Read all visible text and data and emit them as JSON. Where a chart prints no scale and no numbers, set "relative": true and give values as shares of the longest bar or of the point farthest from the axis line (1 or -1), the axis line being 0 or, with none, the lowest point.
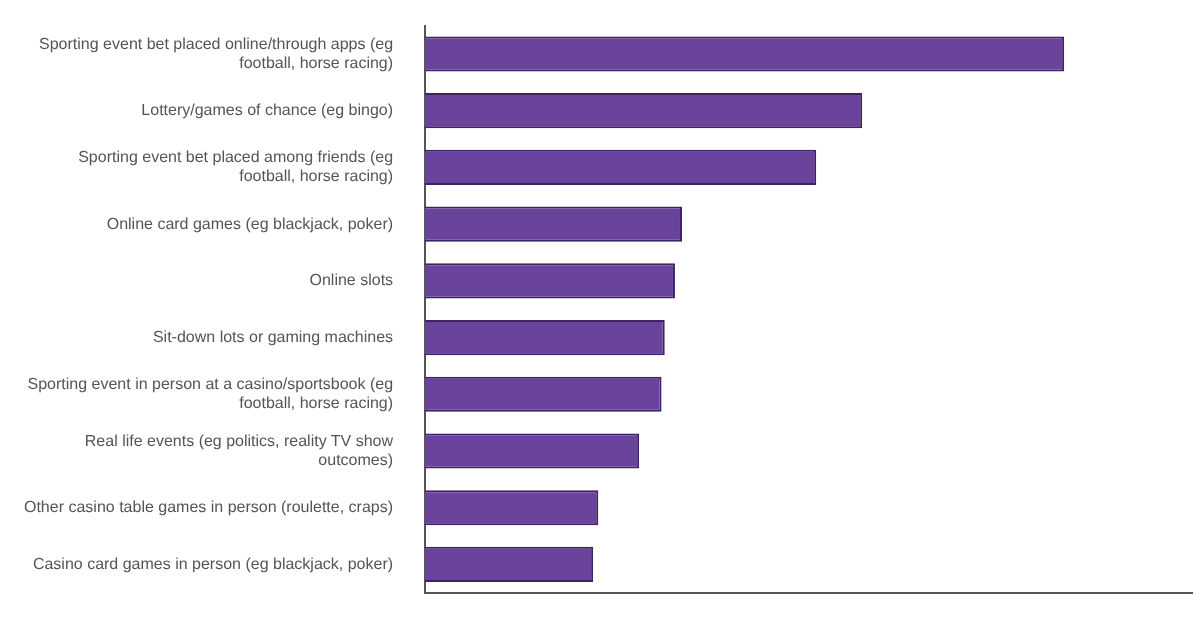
{
  "chart_data": {
    "type": "bar",
    "orientation": "horizontal",
    "relative": true,
    "color": "#6a449c",
    "categories": [
      "Sporting event bet placed online/through apps (eg football, horse racing)",
      "Lottery/games of chance (eg bingo)",
      "Sporting event bet placed among friends (eg football, horse racing)",
      "Online card games (eg blackjack, poker)",
      "Online slots",
      "Sit-down lots or gaming machines",
      "Sporting event in person at a casino/sportsbook (eg football, horse racing)",
      "Real life events (eg politics, reality TV show outcomes)",
      "Other casino table games in person (roulette, craps)",
      "Casino card games in person (eg blackjack, poker)"
    ],
    "values": [
      1,
      0.684,
      0.612,
      0.402,
      0.391,
      0.375,
      0.37,
      0.335,
      0.271,
      0.263
    ],
    "grid": false,
    "legend": false
  }
}
